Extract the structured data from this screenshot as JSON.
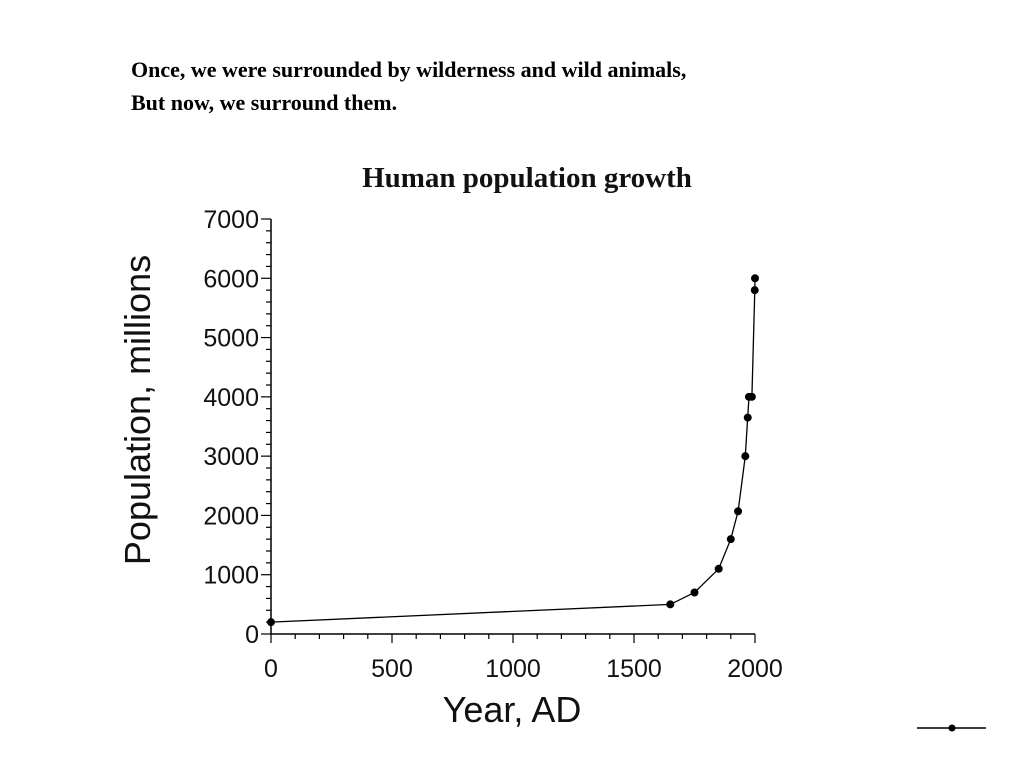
{
  "caption": {
    "line1": "Once, we were surrounded by wilderness and wild animals,",
    "line2": "But now, we surround them."
  },
  "chart_data": {
    "type": "line",
    "title": "Human population growth",
    "xlabel": "Year, AD",
    "ylabel": "Population, millions",
    "xlim": [
      0,
      2000
    ],
    "ylim": [
      0,
      7000
    ],
    "x_ticks": [
      0,
      500,
      1000,
      1500,
      2000
    ],
    "y_ticks": [
      0,
      1000,
      2000,
      3000,
      4000,
      5000,
      6000,
      7000
    ],
    "grid": false,
    "legend": "bottom-right",
    "series": [
      {
        "x": [
          0,
          1650,
          1750,
          1850,
          1900,
          1930,
          1960,
          1970,
          1975,
          1987,
          1999,
          2000
        ],
        "y": [
          200,
          500,
          700,
          1100,
          1600,
          2070,
          3000,
          3650,
          4000,
          4000,
          5800,
          6000
        ],
        "color": "#000000",
        "marker": "circle"
      }
    ]
  },
  "colors": {
    "ink": "#000000",
    "background": "#ffffff"
  }
}
